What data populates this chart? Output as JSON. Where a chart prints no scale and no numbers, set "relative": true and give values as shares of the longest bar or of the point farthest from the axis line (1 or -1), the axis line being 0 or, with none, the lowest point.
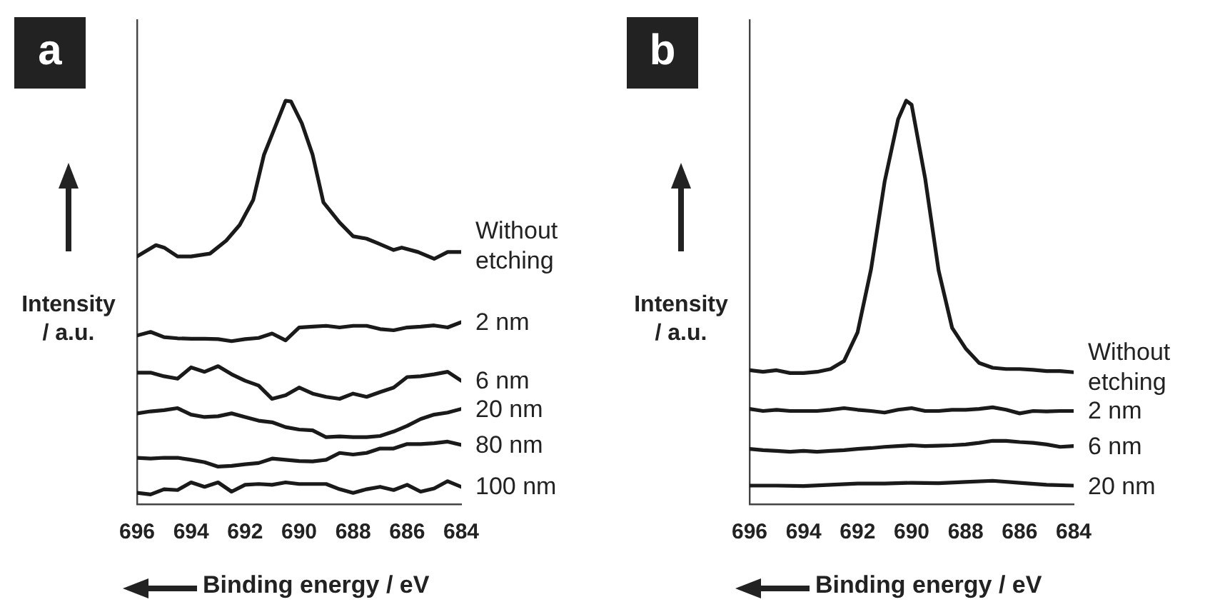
{
  "chart_data": [
    {
      "type": "line",
      "title": "a",
      "xlabel": "Binding energy / eV",
      "ylabel": "Intensity / a.u.",
      "relative": true,
      "xlim": [
        696,
        684
      ],
      "xticks": [
        696,
        694,
        692,
        690,
        688,
        686,
        684
      ],
      "legend": false,
      "series": [
        {
          "name": "Without etching",
          "color": "#1a1a1a",
          "x": [
            696.0,
            695.3,
            695.0,
            694.5,
            694.0,
            693.3,
            692.7,
            692.2,
            691.7,
            691.3,
            690.9,
            690.5,
            690.3,
            689.9,
            689.5,
            689.1,
            688.5,
            688.0,
            687.5,
            687.1,
            686.5,
            686.2,
            685.6,
            685.0,
            684.5,
            684.0
          ],
          "values": [
            0.614,
            0.642,
            0.636,
            0.614,
            0.614,
            0.621,
            0.653,
            0.692,
            0.754,
            0.866,
            0.933,
            1.0,
            0.998,
            0.944,
            0.866,
            0.748,
            0.698,
            0.664,
            0.658,
            0.647,
            0.63,
            0.636,
            0.625,
            0.608,
            0.625,
            0.625
          ]
        },
        {
          "name": "2 nm",
          "color": "#1a1a1a",
          "x": [
            696,
            695.5,
            695,
            694.5,
            694,
            693.5,
            693,
            692.5,
            692,
            691.5,
            691,
            690.5,
            690,
            689.5,
            689,
            688.5,
            688,
            687.5,
            687,
            686.5,
            686,
            685.5,
            685,
            684.5,
            684
          ],
          "values": [
            0.418,
            0.427,
            0.414,
            0.411,
            0.41,
            0.41,
            0.409,
            0.404,
            0.409,
            0.412,
            0.423,
            0.406,
            0.438,
            0.44,
            0.442,
            0.438,
            0.442,
            0.442,
            0.434,
            0.431,
            0.438,
            0.44,
            0.443,
            0.438,
            0.451
          ]
        },
        {
          "name": "6 nm",
          "color": "#1a1a1a",
          "x": [
            696,
            695.5,
            695,
            694.5,
            694,
            693.5,
            693,
            692.5,
            692,
            691.5,
            691,
            690.5,
            690,
            689.5,
            689,
            688.5,
            688,
            687.5,
            687,
            686.5,
            686,
            685.5,
            685,
            684.5,
            684
          ],
          "values": [
            0.326,
            0.326,
            0.317,
            0.311,
            0.339,
            0.328,
            0.342,
            0.322,
            0.306,
            0.294,
            0.261,
            0.27,
            0.289,
            0.274,
            0.266,
            0.261,
            0.274,
            0.266,
            0.278,
            0.289,
            0.315,
            0.317,
            0.322,
            0.328,
            0.306
          ]
        },
        {
          "name": "20 nm",
          "color": "#1a1a1a",
          "x": [
            696,
            695.5,
            695,
            694.5,
            694,
            693.5,
            693,
            692.5,
            692,
            691.5,
            691,
            690.5,
            690,
            689.5,
            689,
            688.5,
            688,
            687.5,
            687,
            686.5,
            686,
            685.5,
            685,
            684.5,
            684
          ],
          "values": [
            0.225,
            0.23,
            0.233,
            0.238,
            0.222,
            0.216,
            0.218,
            0.225,
            0.216,
            0.207,
            0.203,
            0.191,
            0.185,
            0.183,
            0.166,
            0.168,
            0.166,
            0.166,
            0.169,
            0.18,
            0.194,
            0.211,
            0.222,
            0.227,
            0.236
          ]
        },
        {
          "name": "80 nm",
          "color": "#1a1a1a",
          "x": [
            696,
            695.5,
            695,
            694.5,
            694,
            693.5,
            693,
            692.5,
            692,
            691.5,
            691,
            690.5,
            690,
            689.5,
            689,
            688.5,
            688,
            687.5,
            687,
            686.5,
            686,
            685.5,
            685,
            684.5,
            684
          ],
          "values": [
            0.115,
            0.113,
            0.115,
            0.115,
            0.11,
            0.104,
            0.093,
            0.095,
            0.099,
            0.102,
            0.113,
            0.11,
            0.107,
            0.106,
            0.11,
            0.127,
            0.123,
            0.127,
            0.138,
            0.138,
            0.149,
            0.149,
            0.151,
            0.155,
            0.147
          ]
        },
        {
          "name": "100 nm",
          "color": "#1a1a1a",
          "x": [
            696,
            695.5,
            695,
            694.5,
            694,
            693.5,
            693,
            692.5,
            692,
            691.5,
            691,
            690.5,
            690,
            689.5,
            689,
            688.5,
            688,
            687.5,
            687,
            686.5,
            686,
            685.5,
            685,
            684.5,
            684
          ],
          "values": [
            0.028,
            0.024,
            0.037,
            0.035,
            0.054,
            0.043,
            0.054,
            0.031,
            0.048,
            0.05,
            0.048,
            0.054,
            0.05,
            0.05,
            0.05,
            0.037,
            0.028,
            0.037,
            0.043,
            0.035,
            0.048,
            0.031,
            0.039,
            0.057,
            0.043
          ]
        }
      ]
    },
    {
      "type": "line",
      "title": "b",
      "xlabel": "Binding energy / eV",
      "ylabel": "Intensity / a.u.",
      "relative": true,
      "xlim": [
        696,
        684
      ],
      "xticks": [
        696,
        694,
        692,
        690,
        688,
        686,
        684
      ],
      "legend": false,
      "series": [
        {
          "name": "Without etching",
          "color": "#1a1a1a",
          "x": [
            696,
            695.5,
            695,
            694.5,
            694,
            693.5,
            693,
            692.5,
            692,
            691.5,
            691,
            690.5,
            690.2,
            690,
            689.5,
            689,
            688.5,
            688,
            687.5,
            687,
            686.5,
            686,
            685.5,
            685,
            684.5,
            684
          ],
          "values": [
            0.332,
            0.328,
            0.332,
            0.325,
            0.325,
            0.328,
            0.335,
            0.355,
            0.426,
            0.583,
            0.799,
            0.954,
            1.0,
            0.99,
            0.808,
            0.579,
            0.437,
            0.386,
            0.35,
            0.338,
            0.335,
            0.335,
            0.333,
            0.33,
            0.33,
            0.327
          ]
        },
        {
          "name": "2 nm",
          "color": "#1a1a1a",
          "x": [
            696,
            695.5,
            695,
            694.5,
            694,
            693.5,
            693,
            692.5,
            692,
            691.5,
            691,
            690.5,
            690,
            689.5,
            689,
            688.5,
            688,
            687.5,
            687,
            686.5,
            686,
            685.5,
            685,
            684.5,
            684
          ],
          "values": [
            0.236,
            0.231,
            0.234,
            0.231,
            0.231,
            0.231,
            0.234,
            0.238,
            0.234,
            0.231,
            0.227,
            0.234,
            0.238,
            0.231,
            0.231,
            0.234,
            0.234,
            0.236,
            0.24,
            0.234,
            0.225,
            0.231,
            0.23,
            0.231,
            0.231
          ]
        },
        {
          "name": "6 nm",
          "color": "#1a1a1a",
          "x": [
            696,
            695.5,
            695,
            694.5,
            694,
            693.5,
            693,
            692.5,
            692,
            691.5,
            691,
            690.5,
            690,
            689.5,
            689,
            688.5,
            688,
            687.5,
            687,
            686.5,
            686,
            685.5,
            685,
            684.5,
            684
          ],
          "values": [
            0.137,
            0.134,
            0.132,
            0.13,
            0.132,
            0.13,
            0.132,
            0.134,
            0.137,
            0.139,
            0.142,
            0.144,
            0.146,
            0.144,
            0.145,
            0.146,
            0.148,
            0.152,
            0.157,
            0.157,
            0.154,
            0.152,
            0.148,
            0.142,
            0.144
          ]
        },
        {
          "name": "20 nm",
          "color": "#1a1a1a",
          "x": [
            696,
            695,
            694,
            693,
            692,
            691,
            690,
            689,
            688,
            687,
            686,
            685,
            684
          ],
          "values": [
            0.046,
            0.046,
            0.045,
            0.048,
            0.051,
            0.051,
            0.053,
            0.052,
            0.055,
            0.058,
            0.053,
            0.048,
            0.046
          ]
        }
      ]
    }
  ]
}
